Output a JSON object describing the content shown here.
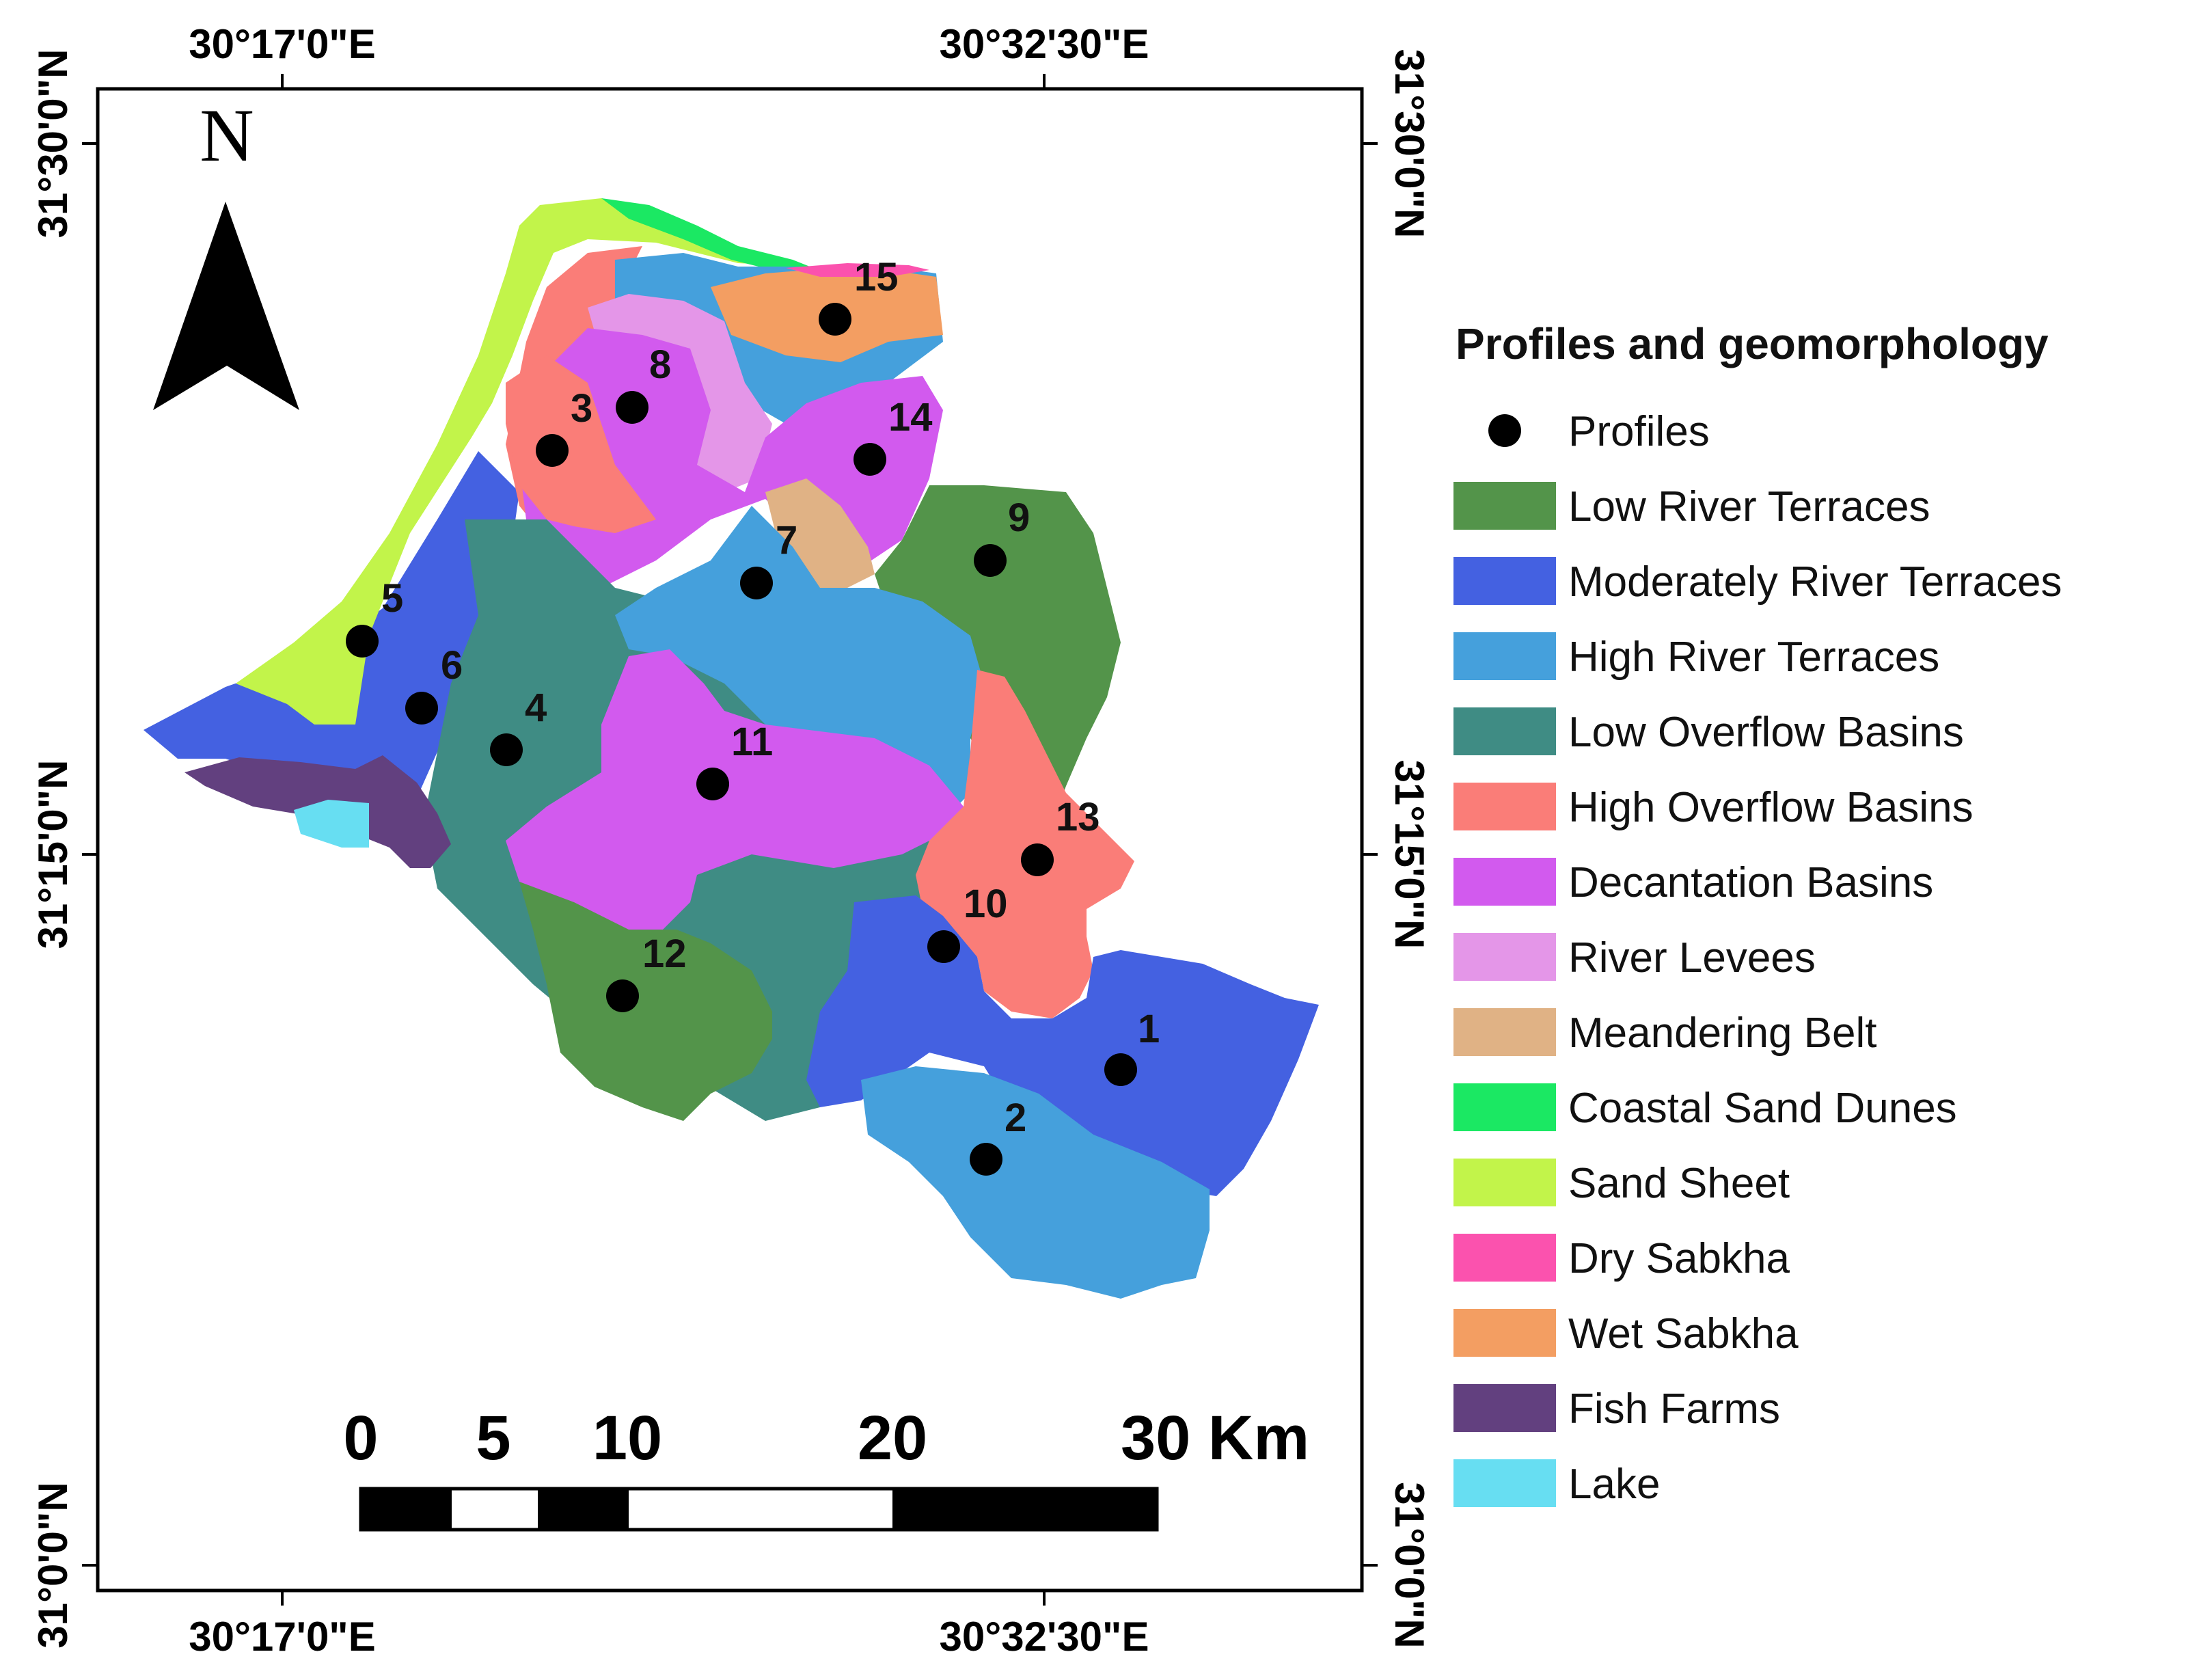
{
  "coordinates": {
    "top": [
      "30°17'0\"E",
      "30°32'30\"E"
    ],
    "bottom": [
      "30°17'0\"E",
      "30°32'30\"E"
    ],
    "left": [
      "31°30'0\"N",
      "31°15'0\"N",
      "31°0'0\"N"
    ],
    "right": [
      "31°30'0\"N",
      "31°15'0\"N",
      "31°0'0\"N"
    ]
  },
  "north_arrow": {
    "letter": "N"
  },
  "scale_bar": {
    "ticks": [
      "0",
      "5",
      "10",
      "20",
      "30 Km"
    ]
  },
  "legend": {
    "title": "Profiles and geomorphology",
    "profiles_label": "Profiles",
    "classes": [
      {
        "label": "Low River Terraces",
        "color": "#53944A"
      },
      {
        "label": "Moderately River Terraces",
        "color": "#4461E1"
      },
      {
        "label": "High River Terraces",
        "color": "#45A0DC"
      },
      {
        "label": "Low Overflow Basins",
        "color": "#3F8C84"
      },
      {
        "label": "High Overflow Basins",
        "color": "#FA7D78"
      },
      {
        "label": "Decantation Basins",
        "color": "#D25AEE"
      },
      {
        "label": "River Levees",
        "color": "#E496E8"
      },
      {
        "label": "Meandering Belt",
        "color": "#E0B285"
      },
      {
        "label": "Coastal Sand Dunes",
        "color": "#1BE863"
      },
      {
        "label": "Sand Sheet",
        "color": "#C2F44A"
      },
      {
        "label": "Dry Sabkha",
        "color": "#FB52AE"
      },
      {
        "label": "Wet Sabkha",
        "color": "#F39E62"
      },
      {
        "label": "Fish Farms",
        "color": "#62407F"
      },
      {
        "label": "Lake",
        "color": "#67DEF2"
      }
    ]
  },
  "profiles": [
    "1",
    "2",
    "3",
    "4",
    "5",
    "6",
    "7",
    "8",
    "9",
    "10",
    "11",
    "12",
    "13",
    "14",
    "15"
  ]
}
